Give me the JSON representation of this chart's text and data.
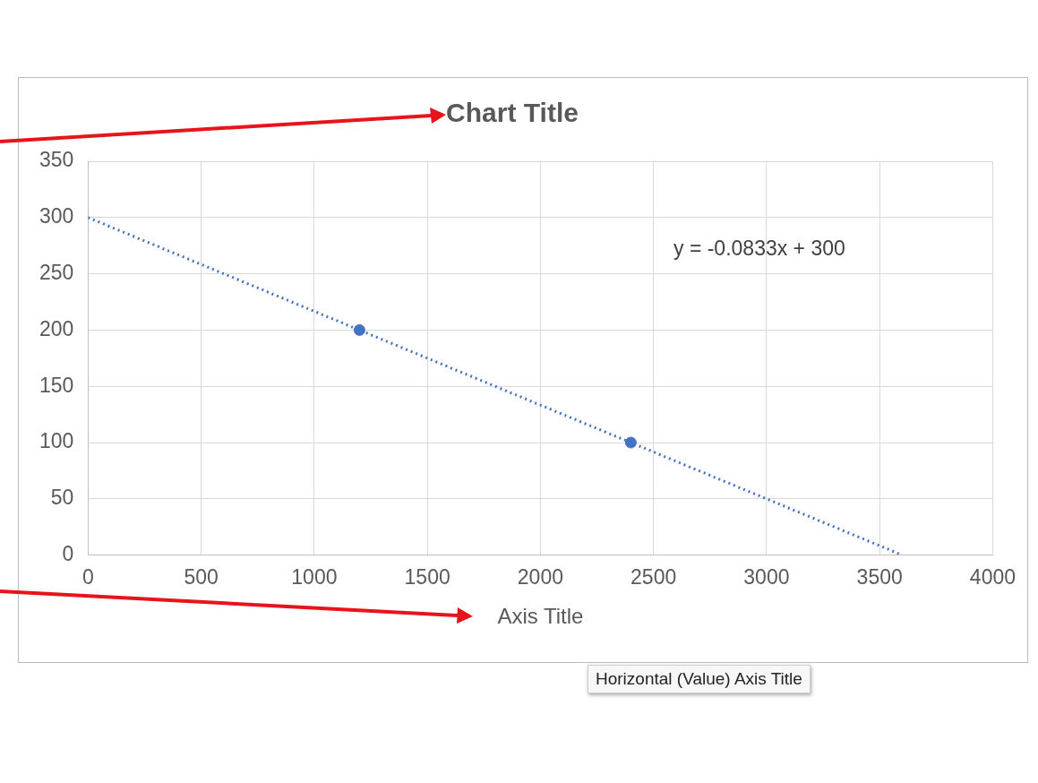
{
  "chart_data": {
    "type": "scatter",
    "title": "Chart Title",
    "xlabel": "Axis Title",
    "series": [
      {
        "color": "#4472c4",
        "x": [
          1200,
          2400
        ],
        "values": [
          200,
          100
        ],
        "marker": "circle"
      },
      {
        "type": "line",
        "color": "#4472c4",
        "x": [
          0,
          3600
        ],
        "values": [
          300,
          0
        ],
        "line_style": "dotted",
        "marker": "none"
      }
    ],
    "xlim": [
      0,
      4000
    ],
    "xticks": [
      0,
      500,
      1000,
      1500,
      2000,
      2500,
      3000,
      3500,
      4000
    ],
    "ylim": [
      0,
      350
    ],
    "yticks": [
      0,
      50,
      100,
      150,
      200,
      250,
      300,
      350
    ],
    "grid": true,
    "legend": false,
    "annotations": [
      "y = -0.0833x + 300",
      "Horizontal (Value) Axis Title"
    ]
  }
}
